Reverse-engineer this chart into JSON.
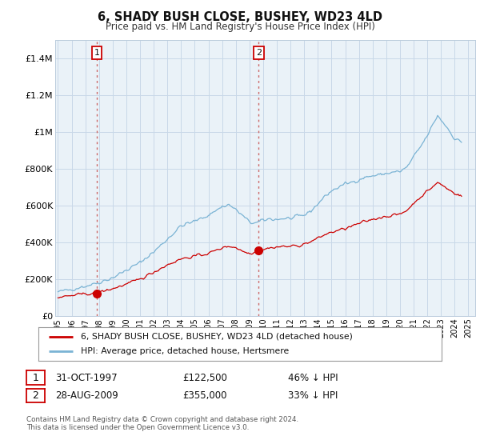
{
  "title": "6, SHADY BUSH CLOSE, BUSHEY, WD23 4LD",
  "subtitle": "Price paid vs. HM Land Registry's House Price Index (HPI)",
  "legend_line1": "6, SHADY BUSH CLOSE, BUSHEY, WD23 4LD (detached house)",
  "legend_line2": "HPI: Average price, detached house, Hertsmere",
  "transaction1_date": "31-OCT-1997",
  "transaction1_price": "£122,500",
  "transaction1_hpi": "46% ↓ HPI",
  "transaction2_date": "28-AUG-2009",
  "transaction2_price": "£355,000",
  "transaction2_hpi": "33% ↓ HPI",
  "footnote": "Contains HM Land Registry data © Crown copyright and database right 2024.\nThis data is licensed under the Open Government Licence v3.0.",
  "hpi_color": "#7ab3d4",
  "price_color": "#cc0000",
  "vline_color": "#cc6666",
  "chart_bg": "#eaf2f8",
  "background_color": "#ffffff",
  "grid_color": "#c8d8e8",
  "ylim": [
    0,
    1500000
  ],
  "yticks": [
    0,
    200000,
    400000,
    600000,
    800000,
    1000000,
    1200000,
    1400000
  ],
  "ytick_labels": [
    "£0",
    "£200K",
    "£400K",
    "£600K",
    "£800K",
    "£1M",
    "£1.2M",
    "£1.4M"
  ],
  "vline1_x": 1997.833,
  "vline2_x": 2009.667,
  "dot1_x": 1997.833,
  "dot1_y": 122500,
  "dot2_x": 2009.667,
  "dot2_y": 355000,
  "xlim_left": 1994.8,
  "xlim_right": 2025.5,
  "xtick_years": [
    1995,
    1996,
    1997,
    1998,
    1999,
    2000,
    2001,
    2002,
    2003,
    2004,
    2005,
    2006,
    2007,
    2008,
    2009,
    2010,
    2011,
    2012,
    2013,
    2014,
    2015,
    2016,
    2017,
    2018,
    2019,
    2020,
    2021,
    2022,
    2023,
    2024,
    2025
  ]
}
